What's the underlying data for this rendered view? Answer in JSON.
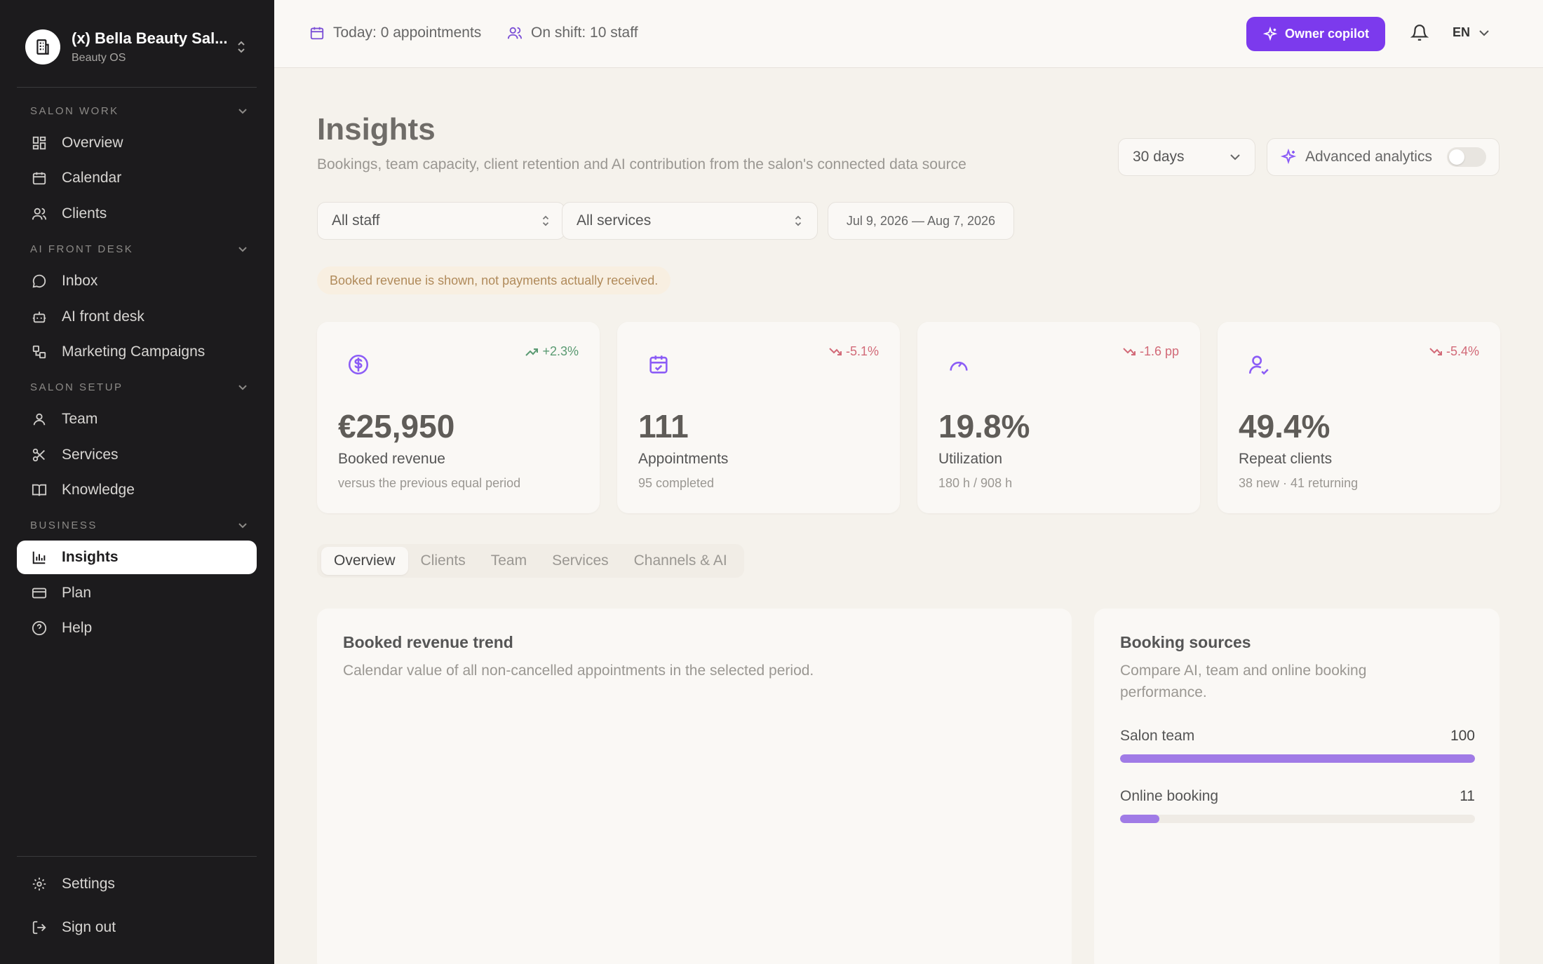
{
  "sidebar": {
    "brand_name": "(x) Bella Beauty Sal...",
    "brand_sub": "Beauty OS",
    "sections": {
      "salon_work": "SALON WORK",
      "ai_front_desk": "AI FRONT DESK",
      "salon_setup": "SALON SETUP",
      "business": "BUSINESS"
    },
    "items": {
      "overview": "Overview",
      "calendar": "Calendar",
      "clients": "Clients",
      "inbox": "Inbox",
      "ai_front_desk": "AI front desk",
      "marketing": "Marketing Campaigns",
      "team": "Team",
      "services": "Services",
      "knowledge": "Knowledge",
      "insights": "Insights",
      "plan": "Plan",
      "help": "Help",
      "settings": "Settings",
      "sign_out": "Sign out"
    }
  },
  "topbar": {
    "today": "Today: 0 appointments",
    "on_shift": "On shift: 10 staff",
    "copilot": "Owner copilot",
    "lang": "EN"
  },
  "page": {
    "title": "Insights",
    "subtitle": "Bookings, team capacity, client retention and AI contribution from the salon's connected data source",
    "period": "30 days",
    "advanced": "Advanced analytics",
    "advanced_enabled": false,
    "staff_filter": "All staff",
    "service_filter": "All services",
    "date_range": "Jul 9, 2026 — Aug 7, 2026",
    "notice": "Booked revenue is shown, not payments actually received."
  },
  "kpis": [
    {
      "icon": "dollar-icon",
      "delta": "+2.3%",
      "trend": "up",
      "value": "€25,950",
      "label": "Booked revenue",
      "sub": "versus the previous equal period"
    },
    {
      "icon": "calendar-check-icon",
      "delta": "-5.1%",
      "trend": "down",
      "value": "111",
      "label": "Appointments",
      "sub": "95 completed"
    },
    {
      "icon": "gauge-icon",
      "delta": "-1.6 pp",
      "trend": "down",
      "value": "19.8%",
      "label": "Utilization",
      "sub": "180 h / 908 h"
    },
    {
      "icon": "user-check-icon",
      "delta": "-5.4%",
      "trend": "down",
      "value": "49.4%",
      "label": "Repeat clients",
      "sub": "38 new · 41 returning"
    }
  ],
  "tabs": [
    "Overview",
    "Clients",
    "Team",
    "Services",
    "Channels & AI"
  ],
  "revenue_card": {
    "title": "Booked revenue trend",
    "subtitle": "Calendar value of all non-cancelled appointments in the selected period."
  },
  "sources_card": {
    "title": "Booking sources",
    "subtitle": "Compare AI, team and online booking performance.",
    "max": 100,
    "rows": [
      {
        "label": "Salon team",
        "value": 100
      },
      {
        "label": "Online booking",
        "value": 11
      }
    ]
  },
  "colors": {
    "accent": "#7c3aed",
    "sidebar_bg": "#1c1b1d",
    "positive": "#5a9a72",
    "negative": "#d26a78"
  }
}
